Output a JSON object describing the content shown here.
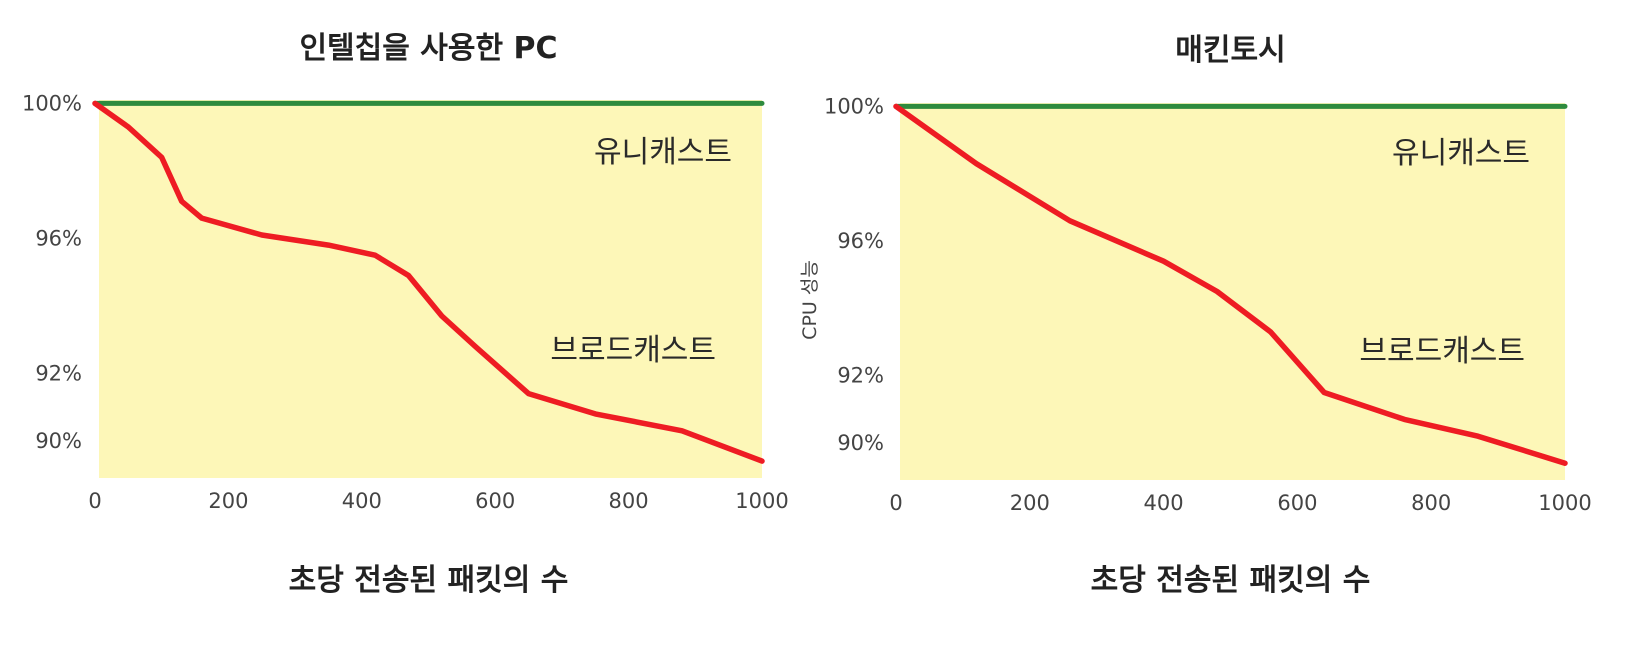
{
  "colors": {
    "plot_background": "#fdf7b8",
    "unicast_line": "#2e8b3e",
    "broadcast_line": "#ee1c23",
    "text": "#222222",
    "tick_text": "#444444"
  },
  "chart_data": [
    {
      "type": "line",
      "title": "인텔칩을 사용한 PC",
      "xlabel": "초당 전송된 패킷의 수",
      "ylabel": "",
      "x_ticks": [
        "0",
        "200",
        "400",
        "600",
        "800",
        "1000"
      ],
      "y_ticks": [
        "100%",
        "96%",
        "92%",
        "90%"
      ],
      "xlim": [
        0,
        1000
      ],
      "ylim": [
        88.9,
        100.1
      ],
      "grid": false,
      "series": [
        {
          "name": "유니캐스트",
          "color": "#2e8b3e",
          "x": [
            0,
            1000
          ],
          "y": [
            100,
            100
          ]
        },
        {
          "name": "브로드캐스트",
          "color": "#ee1c23",
          "x": [
            0,
            50,
            100,
            130,
            160,
            250,
            350,
            420,
            470,
            520,
            570,
            650,
            750,
            880,
            1000
          ],
          "y": [
            100,
            99.3,
            98.4,
            97.1,
            96.6,
            96.1,
            95.8,
            95.5,
            94.9,
            93.7,
            92.8,
            91.4,
            90.8,
            90.3,
            89.4
          ]
        }
      ]
    },
    {
      "type": "line",
      "title": "매킨토시",
      "xlabel": "초당 전송된 패킷의 수",
      "ylabel": "CPU 성능",
      "x_ticks": [
        "0",
        "200",
        "400",
        "600",
        "800",
        "1000"
      ],
      "y_ticks": [
        "100%",
        "96%",
        "92%",
        "90%"
      ],
      "xlim": [
        0,
        1000
      ],
      "ylim": [
        88.9,
        100.1
      ],
      "grid": false,
      "series": [
        {
          "name": "유니캐스트",
          "color": "#2e8b3e",
          "x": [
            0,
            1000
          ],
          "y": [
            100,
            100
          ]
        },
        {
          "name": "브로드캐스트",
          "color": "#ee1c23",
          "x": [
            0,
            120,
            260,
            400,
            480,
            560,
            640,
            760,
            870,
            1000
          ],
          "y": [
            100,
            98.3,
            96.6,
            95.4,
            94.5,
            93.3,
            91.5,
            90.7,
            90.2,
            89.4
          ]
        }
      ]
    }
  ]
}
